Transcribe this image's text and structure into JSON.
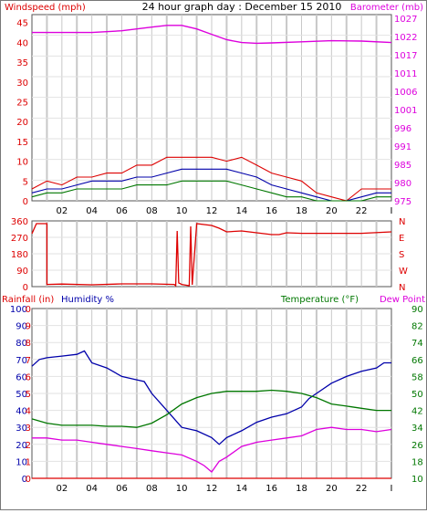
{
  "title": "24 hour graph day : December 15 2010",
  "colors": {
    "red": "#dd0000",
    "magenta": "#dd00dd",
    "navy": "#0000aa",
    "green": "#007700",
    "grid": "#c8c8c8"
  },
  "chart_data": [
    {
      "type": "line",
      "panel": "wind-baro",
      "title": "24 hour graph day : December 15 2010",
      "ylabel_left": "Windspeed (mph)",
      "ylabel_right": "Barometer (mb)",
      "x_ticks": [
        "02",
        "04",
        "06",
        "08",
        "10",
        "12",
        "14",
        "16",
        "18",
        "20",
        "22",
        "I"
      ],
      "y_left_ticks": [
        "0",
        "5",
        "10",
        "15",
        "20",
        "25",
        "30",
        "35",
        "40",
        "45"
      ],
      "y_right_ticks": [
        "975",
        "980",
        "985",
        "991",
        "996",
        "1001",
        "1006",
        "1011",
        "1017",
        "1022",
        "1027"
      ],
      "ylim_left": [
        0,
        47
      ],
      "ylim_right": [
        975,
        1027
      ],
      "xlim": [
        0,
        24
      ],
      "grid": true,
      "series": [
        {
          "name": "Barometer (mb)",
          "axis": "right",
          "color": "magenta",
          "x": [
            0,
            2,
            4,
            6,
            8,
            9,
            10,
            11,
            12,
            13,
            14,
            15,
            16,
            18,
            20,
            22,
            24
          ],
          "y": [
            1022,
            1022,
            1022,
            1022.5,
            1023.5,
            1024,
            1024,
            1023,
            1021.5,
            1020,
            1019.2,
            1019,
            1019.1,
            1019.4,
            1019.7,
            1019.6,
            1019.2
          ]
        },
        {
          "name": "Wind gust",
          "axis": "left",
          "color": "red",
          "x": [
            0,
            1,
            2,
            3,
            4,
            5,
            6,
            7,
            8,
            9,
            10,
            11,
            12,
            13,
            14,
            15,
            16,
            17,
            18,
            19,
            20,
            21,
            22,
            23,
            24
          ],
          "y": [
            3,
            5,
            4,
            6,
            6,
            7,
            7,
            9,
            9,
            11,
            11,
            11,
            11,
            10,
            11,
            9,
            7,
            6,
            5,
            2,
            1,
            0,
            3,
            3,
            3
          ]
        },
        {
          "name": "Wind average",
          "axis": "left",
          "color": "navy",
          "x": [
            0,
            1,
            2,
            3,
            4,
            5,
            6,
            7,
            8,
            9,
            10,
            11,
            12,
            13,
            14,
            15,
            16,
            17,
            18,
            19,
            20,
            21,
            22,
            23,
            24
          ],
          "y": [
            2,
            3,
            3,
            4,
            5,
            5,
            5,
            6,
            6,
            7,
            8,
            8,
            8,
            8,
            7,
            6,
            4,
            3,
            2,
            1,
            0,
            0,
            1,
            2,
            2
          ]
        },
        {
          "name": "Wind speed",
          "axis": "left",
          "color": "green",
          "x": [
            0,
            1,
            2,
            3,
            4,
            5,
            6,
            7,
            8,
            9,
            10,
            11,
            12,
            13,
            14,
            15,
            16,
            17,
            18,
            19,
            20,
            21,
            22,
            23,
            24
          ],
          "y": [
            1,
            2,
            2,
            3,
            3,
            3,
            3,
            4,
            4,
            4,
            5,
            5,
            5,
            5,
            4,
            3,
            2,
            1,
            1,
            0,
            0,
            0,
            0,
            1,
            1
          ]
        }
      ]
    },
    {
      "type": "line",
      "panel": "direction",
      "y_left_ticks": [
        "0",
        "90",
        "180",
        "270",
        "360"
      ],
      "y_right_ticks": [
        "N",
        "W",
        "S",
        "E",
        "N"
      ],
      "ylim": [
        0,
        360
      ],
      "xlim": [
        0,
        24
      ],
      "grid": true,
      "series": [
        {
          "name": "Wind direction",
          "color": "red",
          "x": [
            0,
            0.3,
            0.3,
            1,
            1,
            2,
            4,
            6,
            8,
            9.5,
            9.6,
            9.7,
            9.8,
            10,
            10.5,
            10.6,
            10.7,
            11,
            11.5,
            12,
            12.5,
            13,
            14,
            15,
            16,
            16.5,
            17,
            18,
            20,
            22,
            24
          ],
          "y": [
            290,
            345,
            345,
            345,
            12,
            14,
            10,
            15,
            15,
            12,
            5,
            305,
            20,
            12,
            5,
            330,
            10,
            345,
            340,
            335,
            320,
            300,
            305,
            295,
            285,
            285,
            295,
            292,
            292,
            292,
            300
          ]
        }
      ]
    },
    {
      "type": "line",
      "panel": "rain-hum-temp",
      "ylabel_left_1": "Rainfall (in)",
      "ylabel_left_2": "Humidity %",
      "ylabel_right_1": "Temperature (°F)",
      "ylabel_right_2": "Dew Point",
      "x_ticks": [
        "02",
        "04",
        "06",
        "08",
        "10",
        "12",
        "14",
        "16",
        "18",
        "20",
        "22",
        "I"
      ],
      "y_rain_ticks": [
        "0.0",
        "0.1",
        "0.2",
        "0.3",
        "0.4",
        "0.5",
        "0.6",
        "0.7",
        "0.8",
        "0.9",
        "1.0"
      ],
      "y_hum_ticks": [
        "0",
        "10",
        "20",
        "30",
        "40",
        "50",
        "60",
        "70",
        "80",
        "90",
        "100"
      ],
      "y_temp_ticks": [
        "10",
        "18",
        "26",
        "34",
        "42",
        "50",
        "58",
        "66",
        "74",
        "82",
        "90"
      ],
      "ylim_hum": [
        0,
        100
      ],
      "ylim_temp": [
        10,
        90
      ],
      "xlim": [
        0,
        24
      ],
      "grid": true,
      "series": [
        {
          "name": "Humidity %",
          "axis": "humidity",
          "color": "navy",
          "x": [
            0,
            0.5,
            1,
            2,
            3,
            3.5,
            4,
            5,
            6,
            7,
            7.5,
            8,
            9,
            10,
            11,
            12,
            12.5,
            13,
            14,
            15,
            16,
            17,
            18,
            18.5,
            19,
            20,
            21,
            22,
            23,
            23.5,
            24
          ],
          "y": [
            66,
            70,
            71,
            72,
            73,
            75,
            68,
            65,
            60,
            58,
            57,
            50,
            40,
            30,
            28,
            24,
            20,
            24,
            28,
            33,
            36,
            38,
            42,
            47,
            50,
            56,
            60,
            63,
            65,
            68,
            68
          ]
        },
        {
          "name": "Temperature (°F)",
          "axis": "temperature",
          "color": "green",
          "x": [
            0,
            1,
            2,
            3,
            4,
            5,
            6,
            7,
            8,
            9,
            10,
            11,
            12,
            13,
            14,
            15,
            16,
            17,
            18,
            19,
            20,
            21,
            22,
            23,
            24
          ],
          "y": [
            38,
            36,
            35,
            35,
            35,
            34.5,
            34.5,
            34,
            36,
            40,
            45,
            48,
            50,
            51,
            51,
            51,
            51.5,
            51,
            50,
            48,
            45,
            44,
            43,
            42,
            42
          ]
        },
        {
          "name": "Dew Point",
          "axis": "temperature",
          "color": "magenta",
          "x": [
            0,
            1,
            2,
            3,
            4,
            5,
            6,
            7,
            8,
            9,
            10,
            11,
            11.5,
            12,
            12.5,
            13,
            14,
            15,
            16,
            17,
            18,
            19,
            20,
            21,
            22,
            23,
            24
          ],
          "y": [
            29,
            29,
            28,
            28,
            27,
            26,
            25,
            24,
            23,
            22,
            21,
            18,
            16,
            13,
            18,
            20,
            25,
            27,
            28,
            29,
            30,
            33,
            34,
            33,
            33,
            32,
            33
          ]
        },
        {
          "name": "Rainfall (in)",
          "axis": "rain",
          "color": "red",
          "x": [
            0,
            24
          ],
          "y": [
            0,
            0
          ]
        }
      ]
    }
  ]
}
